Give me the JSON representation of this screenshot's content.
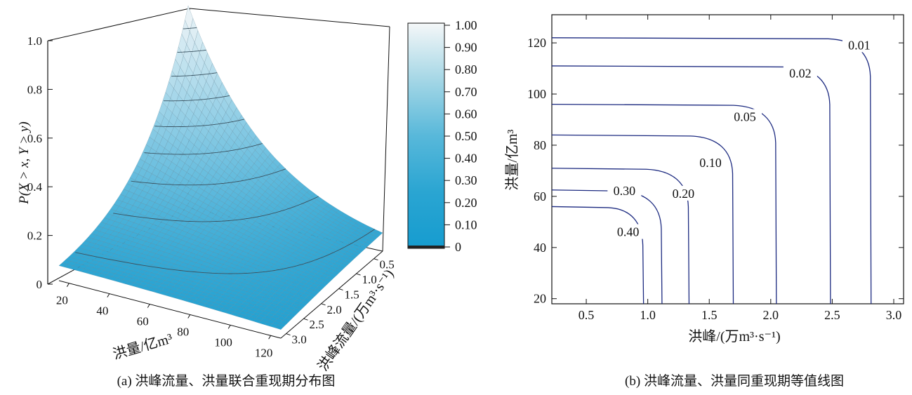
{
  "chart_data": [
    {
      "type": "surface",
      "caption": "(a) 洪峰流量、洪量联合重现期分布图",
      "zlabel": "P(X > x, Y > y)",
      "zlim": [
        0,
        1.0
      ],
      "z_ticks": [
        "0",
        "0.2",
        "0.4",
        "0.6",
        "0.8",
        "1.0"
      ],
      "xlabel": "洪量/亿m³",
      "x_ticks": [
        "20",
        "40",
        "60",
        "80",
        "100",
        "120"
      ],
      "xlim": [
        20,
        125
      ],
      "ylabel": "洪峰流量/(万m³·s⁻¹)",
      "y_ticks": [
        "0.5",
        "1.0",
        "1.5",
        "2.0",
        "2.5",
        "3.0"
      ],
      "ylim": [
        0.25,
        3.0
      ],
      "colorbar": {
        "ticks": [
          "1.00",
          "0.90",
          "0.80",
          "0.70",
          "0.60",
          "0.50",
          "0.40",
          "0.30",
          "0.20",
          "0.10",
          "0"
        ],
        "range": [
          0,
          1.0
        ],
        "color_low": "#169ccf",
        "color_high": "#f5f7f8"
      },
      "surface_peak": {
        "x": 20,
        "y": 0.25,
        "z": 1.0
      }
    },
    {
      "type": "contour",
      "caption": "(b) 洪峰流量、洪量同重现期等值线图",
      "xlabel": "洪峰/(万m³·s⁻¹)",
      "ylabel": "洪量/亿m³",
      "xlim": [
        0.22,
        3.08
      ],
      "ylim": [
        18,
        131
      ],
      "x_ticks": [
        "0.5",
        "1.0",
        "1.5",
        "2.0",
        "2.5",
        "3.0"
      ],
      "y_ticks": [
        "20",
        "40",
        "60",
        "80",
        "100",
        "120"
      ],
      "line_color": "#1c2a80",
      "levels": [
        {
          "label": "0.01",
          "y_asym": 122,
          "x_asym": 2.81,
          "lx": 2.72,
          "ly": 118
        },
        {
          "label": "0.02",
          "y_asym": 111,
          "x_asym": 2.48,
          "lx": 2.24,
          "ly": 107
        },
        {
          "label": "0.05",
          "y_asym": 96,
          "x_asym": 2.04,
          "lx": 1.79,
          "ly": 90
        },
        {
          "label": "0.10",
          "y_asym": 84,
          "x_asym": 1.69,
          "lx": 1.51,
          "ly": 72
        },
        {
          "label": "0.20",
          "y_asym": 71,
          "x_asym": 1.33,
          "lx": 1.29,
          "ly": 60
        },
        {
          "label": "0.30",
          "y_asym": 62.5,
          "x_asym": 1.11,
          "lx": 0.81,
          "ly": 61
        },
        {
          "label": "0.40",
          "y_asym": 56,
          "x_asym": 0.96,
          "lx": 0.84,
          "ly": 45
        }
      ]
    }
  ]
}
